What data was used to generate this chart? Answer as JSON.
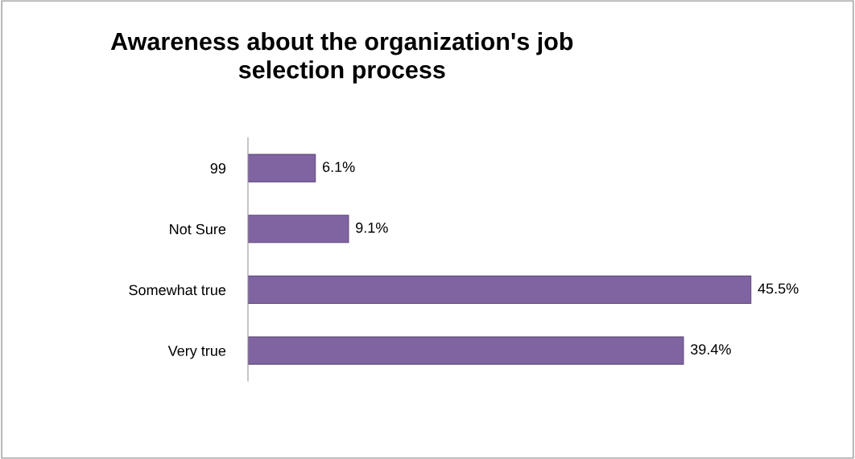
{
  "chart_data": {
    "type": "bar",
    "orientation": "horizontal",
    "title": "Awareness about the organization's job\nselection process",
    "categories": [
      "99",
      "Not Sure",
      "Somewhat true",
      "Very true"
    ],
    "values": [
      6.1,
      9.1,
      45.5,
      39.4
    ],
    "value_labels": [
      "6.1%",
      "9.1%",
      "45.5%",
      "39.4%"
    ],
    "color": "#8064a2",
    "tick_labels": "y",
    "grid": false,
    "legend": false
  }
}
